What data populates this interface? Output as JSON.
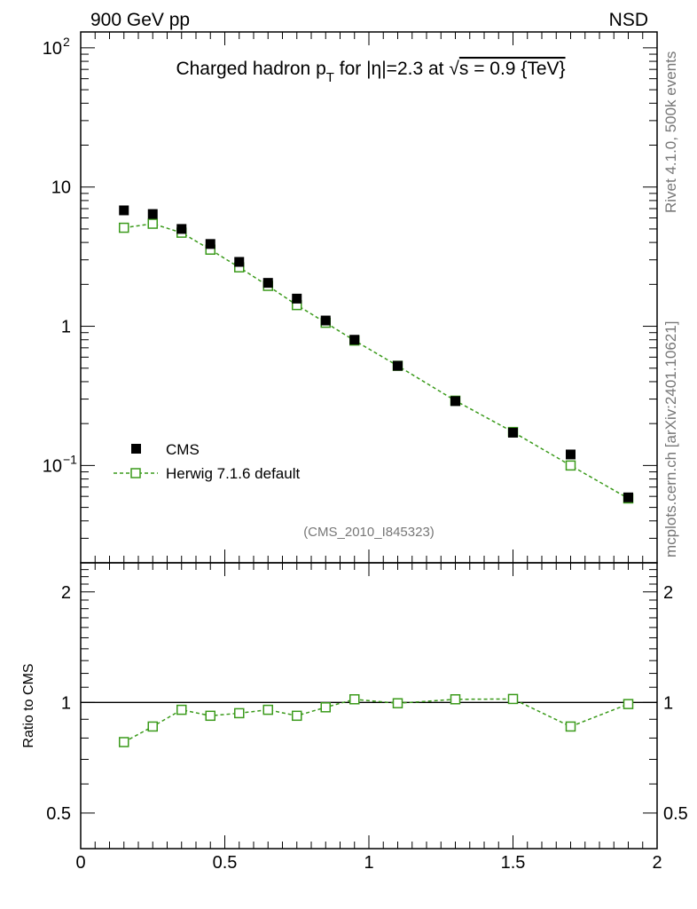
{
  "header": {
    "left": "900 GeV pp",
    "right": "NSD"
  },
  "side_labels": {
    "version": "Rivet 4.1.0,  500k events",
    "site": "mcplots.cern.ch [arXiv:2401.10621]"
  },
  "chart_data": {
    "type": "scatter",
    "title_parts": {
      "main": "Charged hadron p",
      "sub": "T",
      "mid": " for |η|=2.3 at ",
      "root": "√",
      "s_expr": "s = 0.9 {TeV}"
    },
    "analysis_id": "(CMS_2010_I845323)",
    "x": [
      0.15,
      0.25,
      0.35,
      0.45,
      0.55,
      0.65,
      0.75,
      0.85,
      0.95,
      1.1,
      1.3,
      1.5,
      1.7,
      1.9
    ],
    "xlim": [
      0,
      2
    ],
    "xticks": [
      0,
      0.5,
      1,
      1.5,
      2
    ],
    "xtick_labels": [
      "0",
      "0.5",
      "1",
      "1.5",
      "2"
    ],
    "main_panel": {
      "yscale": "log",
      "ylim": [
        0.02,
        130
      ],
      "ytick_labels": [
        {
          "value": 100,
          "base": "10",
          "exp": "2"
        },
        {
          "value": 10,
          "base": "10",
          "exp": ""
        },
        {
          "value": 1,
          "base": "1",
          "exp": ""
        },
        {
          "value": 0.1,
          "base": "10",
          "exp": "−1"
        }
      ],
      "series": [
        {
          "name": "CMS",
          "marker": "filled-square",
          "color": "#000000",
          "values": [
            6.8,
            6.4,
            5.0,
            3.9,
            2.9,
            2.05,
            1.58,
            1.1,
            0.8,
            0.52,
            0.29,
            0.172,
            0.12,
            0.059
          ]
        },
        {
          "name": "Herwig 7.1.6 default",
          "marker": "open-square",
          "color": "#3a9a1a",
          "values": [
            5.1,
            5.45,
            4.7,
            3.55,
            2.65,
            1.95,
            1.42,
            1.06,
            0.79,
            0.52,
            0.292,
            0.174,
            0.1,
            0.058
          ]
        }
      ],
      "legend_position": "lower-left"
    },
    "ratio_panel": {
      "ylabel": "Ratio to CMS",
      "yscale": "log",
      "ylim": [
        0.4,
        2.4
      ],
      "ytick_labels": [
        {
          "value": 2,
          "label": "2"
        },
        {
          "value": 1,
          "label": "1"
        },
        {
          "value": 0.5,
          "label": "0.5"
        }
      ],
      "reference_line": 1,
      "values": [
        0.78,
        0.86,
        0.955,
        0.92,
        0.935,
        0.955,
        0.92,
        0.97,
        1.02,
        0.995,
        1.02,
        1.022,
        0.86,
        0.99
      ]
    }
  }
}
